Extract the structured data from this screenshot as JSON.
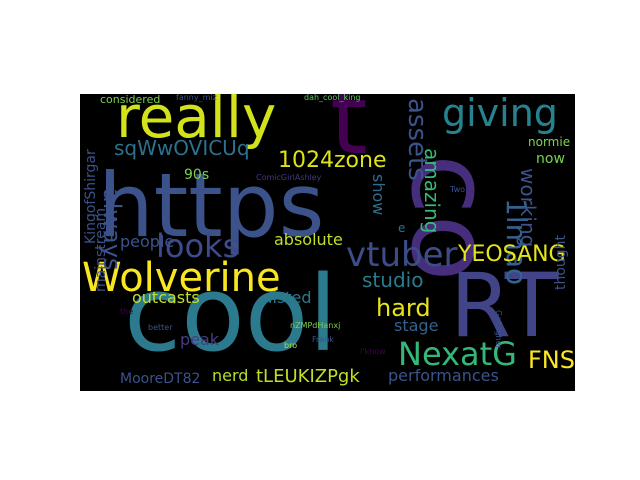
{
  "background": "#000000",
  "page_background": "#ffffff",
  "palette": [
    "#440154",
    "#3b528b",
    "#21918c",
    "#5ec962",
    "#fde725"
  ],
  "words": [
    {
      "text": "https",
      "color": "#3b528b"
    },
    {
      "text": "cool",
      "color": "#2b7a8e"
    },
    {
      "text": "co",
      "color": "#472e7c"
    },
    {
      "text": "t",
      "color": "#440154"
    },
    {
      "text": "RT",
      "color": "#414487"
    },
    {
      "text": "really",
      "color": "#d2e21b"
    },
    {
      "text": "Wolverine",
      "color": "#f8e621"
    },
    {
      "text": "looks",
      "color": "#3e4a89"
    },
    {
      "text": "giving",
      "color": "#26828e"
    },
    {
      "text": "vtuber",
      "color": "#3d4d8a"
    },
    {
      "text": "assets",
      "color": "#3b528b"
    },
    {
      "text": "NexatG",
      "color": "#35b779"
    },
    {
      "text": "1lmao",
      "color": "#34618d"
    },
    {
      "text": "1024zone",
      "color": "#dde318"
    },
    {
      "text": "sqWwOVICUq",
      "color": "#2c728e"
    },
    {
      "text": "YEOSANG",
      "color": "#e5e419"
    },
    {
      "text": "hard",
      "color": "#e7e419"
    },
    {
      "text": "studio",
      "color": "#297b8e"
    },
    {
      "text": "FNS",
      "color": "#fde725"
    },
    {
      "text": "always",
      "color": "#3b528b"
    },
    {
      "text": "amazing",
      "color": "#38b977"
    },
    {
      "text": "working",
      "color": "#3b528b"
    },
    {
      "text": "show",
      "color": "#2f6c8e"
    },
    {
      "text": "absolute",
      "color": "#c0df25"
    },
    {
      "text": "people",
      "color": "#3b528b"
    },
    {
      "text": "outcasts",
      "color": "#c2df23"
    },
    {
      "text": "listed",
      "color": "#2a788e"
    },
    {
      "text": "nerd",
      "color": "#b5de2b"
    },
    {
      "text": "tLEUKIZPgk",
      "color": "#c0df25"
    },
    {
      "text": "MooreDT82",
      "color": "#3b528b"
    },
    {
      "text": "performances",
      "color": "#3a548c"
    },
    {
      "text": "stage",
      "color": "#34618d"
    },
    {
      "text": "peak",
      "color": "#433d84"
    },
    {
      "text": "mainstream",
      "color": "#3b528b"
    },
    {
      "text": "KingofShirgar",
      "color": "#3b528b"
    },
    {
      "text": "90s",
      "color": "#7ad151"
    },
    {
      "text": "now",
      "color": "#7ad151"
    },
    {
      "text": "normie",
      "color": "#7fd34e"
    },
    {
      "text": "thought",
      "color": "#3b528b"
    },
    {
      "text": "considered",
      "color": "#7ad151"
    },
    {
      "text": "e",
      "color": "#2c728e"
    },
    {
      "text": "nZMPdHanxj",
      "color": "#7ad151"
    },
    {
      "text": "ComicGirlAshley",
      "color": "#453781"
    },
    {
      "text": "fanny_miz",
      "color": "#3b528b"
    },
    {
      "text": "dah_cool_king",
      "color": "#5ec962"
    },
    {
      "text": "better",
      "color": "#3b528b"
    },
    {
      "text": "bro",
      "color": "#bddf26"
    },
    {
      "text": "Frank",
      "color": "#3b528b"
    },
    {
      "text": "Gallagher",
      "color": "#3b528b"
    },
    {
      "text": "Two",
      "color": "#3b528b"
    },
    {
      "text": "I'know",
      "color": "#440154"
    },
    {
      "text": "the",
      "color": "#440154"
    }
  ]
}
